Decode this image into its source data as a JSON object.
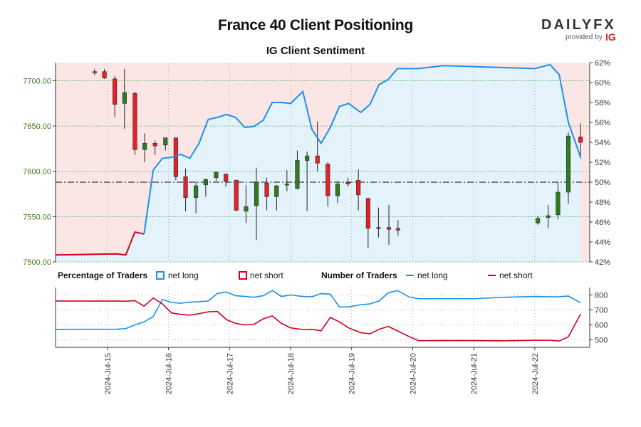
{
  "header": {
    "title": "France 40 Client Positioning",
    "subtitle": "IG Client Sentiment"
  },
  "logo": {
    "brand_left": "DAILY",
    "brand_right": "FX",
    "provided_by": "provided by",
    "ig": "IG"
  },
  "legend": {
    "pct_title": "Percentage of Traders",
    "pct_long": "net long",
    "pct_short": "net short",
    "num_title": "Number of Traders",
    "num_long": "net long",
    "num_short": "net short"
  },
  "colors": {
    "long": "#1e90e8",
    "short": "#d0021b",
    "long_fill": "#e3f2fb",
    "short_fill": "#fbe6e6",
    "up_candle": "#2e7d1e",
    "down_candle": "#e8202a",
    "grid": "#4caf50",
    "price_line": "#555555"
  },
  "chart_data": [
    {
      "type": "candlestick",
      "title": "France 40 Client Positioning",
      "price_axis": {
        "min": 7500,
        "max": 7720,
        "ticks": [
          "7500.00",
          "7550.00",
          "7600.00",
          "7650.00",
          "7700.00"
        ],
        "tick_values": [
          7500,
          7550,
          7600,
          7650,
          7700
        ]
      },
      "pct_axis": {
        "min": 42,
        "max": 62,
        "ticks": [
          "42%",
          "44%",
          "46%",
          "48%",
          "50%",
          "52%",
          "54%",
          "56%",
          "58%",
          "60%",
          "62%"
        ],
        "tick_values": [
          42,
          44,
          46,
          48,
          50,
          52,
          54,
          56,
          58,
          60,
          62
        ]
      },
      "reference_pct": 50,
      "x_range": [
        -0.85,
        7.9
      ],
      "dates": [
        "2024-Jul-15",
        "2024-Jul-16",
        "2024-Jul-17",
        "2024-Jul-18",
        "2024-Jul-19",
        "2024-Jul-20",
        "2024-Jul-21",
        "2024-Jul-22"
      ],
      "candles": [
        {
          "t": -0.21,
          "o": 7710,
          "h": 7713,
          "l": 7706,
          "c": 7709
        },
        {
          "t": -0.05,
          "o": 7710,
          "h": 7713,
          "l": 7702,
          "c": 7703
        },
        {
          "t": 0.12,
          "o": 7702,
          "h": 7705,
          "l": 7660,
          "c": 7674
        },
        {
          "t": 0.28,
          "o": 7675,
          "h": 7713,
          "l": 7647,
          "c": 7687
        },
        {
          "t": 0.45,
          "o": 7686,
          "h": 7688,
          "l": 7618,
          "c": 7624
        },
        {
          "t": 0.61,
          "o": 7624,
          "h": 7642,
          "l": 7610,
          "c": 7631
        },
        {
          "t": 0.78,
          "o": 7631,
          "h": 7634,
          "l": 7618,
          "c": 7628
        },
        {
          "t": 0.95,
          "o": 7629,
          "h": 7637,
          "l": 7623,
          "c": 7637
        },
        {
          "t": 1.12,
          "o": 7637,
          "h": 7637,
          "l": 7590,
          "c": 7594
        },
        {
          "t": 1.28,
          "o": 7594,
          "h": 7603,
          "l": 7556,
          "c": 7571
        },
        {
          "t": 1.45,
          "o": 7571,
          "h": 7589,
          "l": 7554,
          "c": 7584
        },
        {
          "t": 1.61,
          "o": 7585,
          "h": 7592,
          "l": 7572,
          "c": 7591
        },
        {
          "t": 1.78,
          "o": 7593,
          "h": 7600,
          "l": 7589,
          "c": 7599
        },
        {
          "t": 1.94,
          "o": 7597,
          "h": 7597,
          "l": 7583,
          "c": 7589
        },
        {
          "t": 2.11,
          "o": 7590,
          "h": 7591,
          "l": 7556,
          "c": 7557
        },
        {
          "t": 2.27,
          "o": 7556,
          "h": 7585,
          "l": 7543,
          "c": 7561
        },
        {
          "t": 2.44,
          "o": 7562,
          "h": 7604,
          "l": 7524,
          "c": 7588
        },
        {
          "t": 2.61,
          "o": 7587,
          "h": 7593,
          "l": 7557,
          "c": 7572
        },
        {
          "t": 2.77,
          "o": 7572,
          "h": 7585,
          "l": 7557,
          "c": 7584
        },
        {
          "t": 2.94,
          "o": 7585,
          "h": 7601,
          "l": 7578,
          "c": 7586
        },
        {
          "t": 3.11,
          "o": 7581,
          "h": 7623,
          "l": 7580,
          "c": 7612
        },
        {
          "t": 3.27,
          "o": 7612,
          "h": 7622,
          "l": 7556,
          "c": 7617
        },
        {
          "t": 3.44,
          "o": 7617,
          "h": 7655,
          "l": 7600,
          "c": 7609
        },
        {
          "t": 3.61,
          "o": 7608,
          "h": 7610,
          "l": 7561,
          "c": 7573
        },
        {
          "t": 3.77,
          "o": 7573,
          "h": 7589,
          "l": 7565,
          "c": 7586
        },
        {
          "t": 3.94,
          "o": 7588,
          "h": 7593,
          "l": 7583,
          "c": 7586
        },
        {
          "t": 4.11,
          "o": 7590,
          "h": 7602,
          "l": 7557,
          "c": 7574
        },
        {
          "t": 4.27,
          "o": 7570,
          "h": 7571,
          "l": 7515,
          "c": 7537
        },
        {
          "t": 4.44,
          "o": 7538,
          "h": 7560,
          "l": 7527,
          "c": 7538
        },
        {
          "t": 4.61,
          "o": 7538,
          "h": 7563,
          "l": 7519,
          "c": 7536
        },
        {
          "t": 4.76,
          "o": 7537,
          "h": 7546,
          "l": 7529,
          "c": 7535
        },
        {
          "t": 7.05,
          "o": 7543,
          "h": 7551,
          "l": 7541,
          "c": 7548
        },
        {
          "t": 7.22,
          "o": 7549,
          "h": 7563,
          "l": 7537,
          "c": 7551
        },
        {
          "t": 7.38,
          "o": 7552,
          "h": 7588,
          "l": 7547,
          "c": 7577
        },
        {
          "t": 7.55,
          "o": 7577,
          "h": 7643,
          "l": 7564,
          "c": 7639
        },
        {
          "t": 7.75,
          "o": 7638,
          "h": 7653,
          "l": 7614,
          "c": 7632
        }
      ],
      "net_long_pct": {
        "t": [
          -0.85,
          0.15,
          0.3,
          0.45,
          0.6,
          0.75,
          0.9,
          1.05,
          1.2,
          1.35,
          1.5,
          1.65,
          1.8,
          1.95,
          2.1,
          2.25,
          2.4,
          2.55,
          2.7,
          2.85,
          3.0,
          3.2,
          3.35,
          3.5,
          3.65,
          3.8,
          3.95,
          4.15,
          4.3,
          4.45,
          4.6,
          4.75,
          4.95,
          5.1,
          5.5,
          6.0,
          6.5,
          7.0,
          7.25,
          7.4,
          7.55,
          7.75
        ],
        "v": [
          42.7,
          42.8,
          42.7,
          45.0,
          44.8,
          51.2,
          52.4,
          52.5,
          52.8,
          52.4,
          53.9,
          56.3,
          56.5,
          56.8,
          56.5,
          55.5,
          55.6,
          56.2,
          58.0,
          58.0,
          57.9,
          59.1,
          55.3,
          53.9,
          55.5,
          57.6,
          57.9,
          57.0,
          57.8,
          59.8,
          60.3,
          61.4,
          61.4,
          61.4,
          61.7,
          61.6,
          61.5,
          61.4,
          61.8,
          60.8,
          56.0,
          52.5
        ]
      }
    },
    {
      "type": "line",
      "title": "Number of Traders",
      "y_axis": {
        "min": 450,
        "max": 850,
        "ticks": [
          "500",
          "600",
          "700",
          "800"
        ],
        "tick_values": [
          500,
          600,
          700,
          800
        ]
      },
      "series": [
        {
          "name": "net long",
          "t": [
            -0.85,
            0.15,
            0.3,
            0.45,
            0.6,
            0.75,
            0.9,
            1.05,
            1.2,
            1.35,
            1.5,
            1.65,
            1.8,
            1.95,
            2.1,
            2.25,
            2.4,
            2.55,
            2.7,
            2.85,
            3.0,
            3.2,
            3.35,
            3.5,
            3.65,
            3.8,
            3.95,
            4.15,
            4.3,
            4.45,
            4.6,
            4.75,
            4.95,
            5.1,
            5.5,
            6.0,
            6.5,
            7.0,
            7.25,
            7.4,
            7.55,
            7.75
          ],
          "values": [
            570,
            571,
            575,
            600,
            620,
            655,
            770,
            750,
            745,
            752,
            755,
            760,
            810,
            820,
            795,
            790,
            785,
            795,
            830,
            790,
            800,
            790,
            788,
            810,
            805,
            720,
            720,
            735,
            740,
            760,
            815,
            830,
            785,
            775,
            775,
            775,
            785,
            790,
            788,
            788,
            793,
            748
          ]
        },
        {
          "name": "net short",
          "t": [
            -0.85,
            0.15,
            0.3,
            0.45,
            0.6,
            0.75,
            0.9,
            1.05,
            1.2,
            1.35,
            1.5,
            1.65,
            1.8,
            1.95,
            2.1,
            2.25,
            2.4,
            2.55,
            2.7,
            2.85,
            3.0,
            3.2,
            3.35,
            3.5,
            3.65,
            3.8,
            3.95,
            4.15,
            4.3,
            4.45,
            4.6,
            4.75,
            4.95,
            5.1,
            5.5,
            6.0,
            6.5,
            7.0,
            7.25,
            7.4,
            7.55,
            7.75
          ],
          "values": [
            760,
            759,
            758,
            762,
            725,
            780,
            740,
            680,
            670,
            665,
            675,
            687,
            690,
            635,
            610,
            600,
            603,
            640,
            660,
            610,
            580,
            569,
            570,
            560,
            650,
            620,
            580,
            548,
            540,
            570,
            590,
            560,
            520,
            494,
            495,
            495,
            493,
            497,
            497,
            492,
            520,
            672
          ]
        }
      ]
    }
  ]
}
